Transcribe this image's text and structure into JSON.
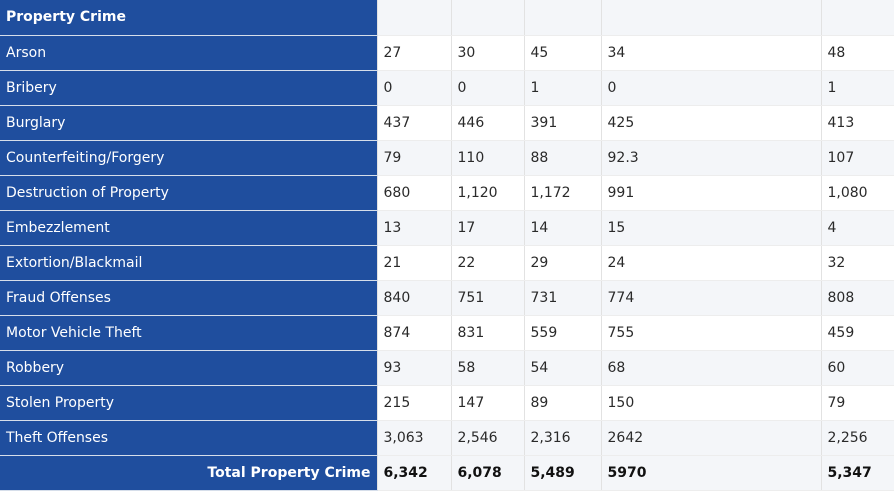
{
  "table": {
    "header_label": "Property Crime",
    "rows": [
      {
        "label": "Arson",
        "values": [
          "27",
          "30",
          "45",
          "34",
          "48"
        ]
      },
      {
        "label": "Bribery",
        "values": [
          "0",
          "0",
          "1",
          "0",
          "1"
        ]
      },
      {
        "label": "Burglary",
        "values": [
          "437",
          "446",
          "391",
          "425",
          "413"
        ]
      },
      {
        "label": "Counterfeiting/Forgery",
        "values": [
          "79",
          "110",
          "88",
          "92.3",
          "107"
        ]
      },
      {
        "label": "Destruction of Property",
        "values": [
          "680",
          "1,120",
          "1,172",
          "991",
          "1,080"
        ]
      },
      {
        "label": "Embezzlement",
        "values": [
          "13",
          "17",
          "14",
          "15",
          "4"
        ]
      },
      {
        "label": "Extortion/Blackmail",
        "values": [
          "21",
          "22",
          "29",
          "24",
          "32"
        ]
      },
      {
        "label": "Fraud Offenses",
        "values": [
          "840",
          "751",
          "731",
          "774",
          "808"
        ]
      },
      {
        "label": "Motor Vehicle Theft",
        "values": [
          "874",
          "831",
          "559",
          "755",
          "459"
        ]
      },
      {
        "label": "Robbery",
        "values": [
          "93",
          "58",
          "54",
          "68",
          "60"
        ]
      },
      {
        "label": "Stolen Property",
        "values": [
          "215",
          "147",
          "89",
          "150",
          "79"
        ]
      },
      {
        "label": "Theft Offenses",
        "values": [
          "3,063",
          "2,546",
          "2,316",
          "2642",
          "2,256"
        ]
      }
    ],
    "total": {
      "label": "Total Property Crime",
      "values": [
        "6,342",
        "6,078",
        "5,489",
        "5970",
        "5,347"
      ]
    }
  }
}
